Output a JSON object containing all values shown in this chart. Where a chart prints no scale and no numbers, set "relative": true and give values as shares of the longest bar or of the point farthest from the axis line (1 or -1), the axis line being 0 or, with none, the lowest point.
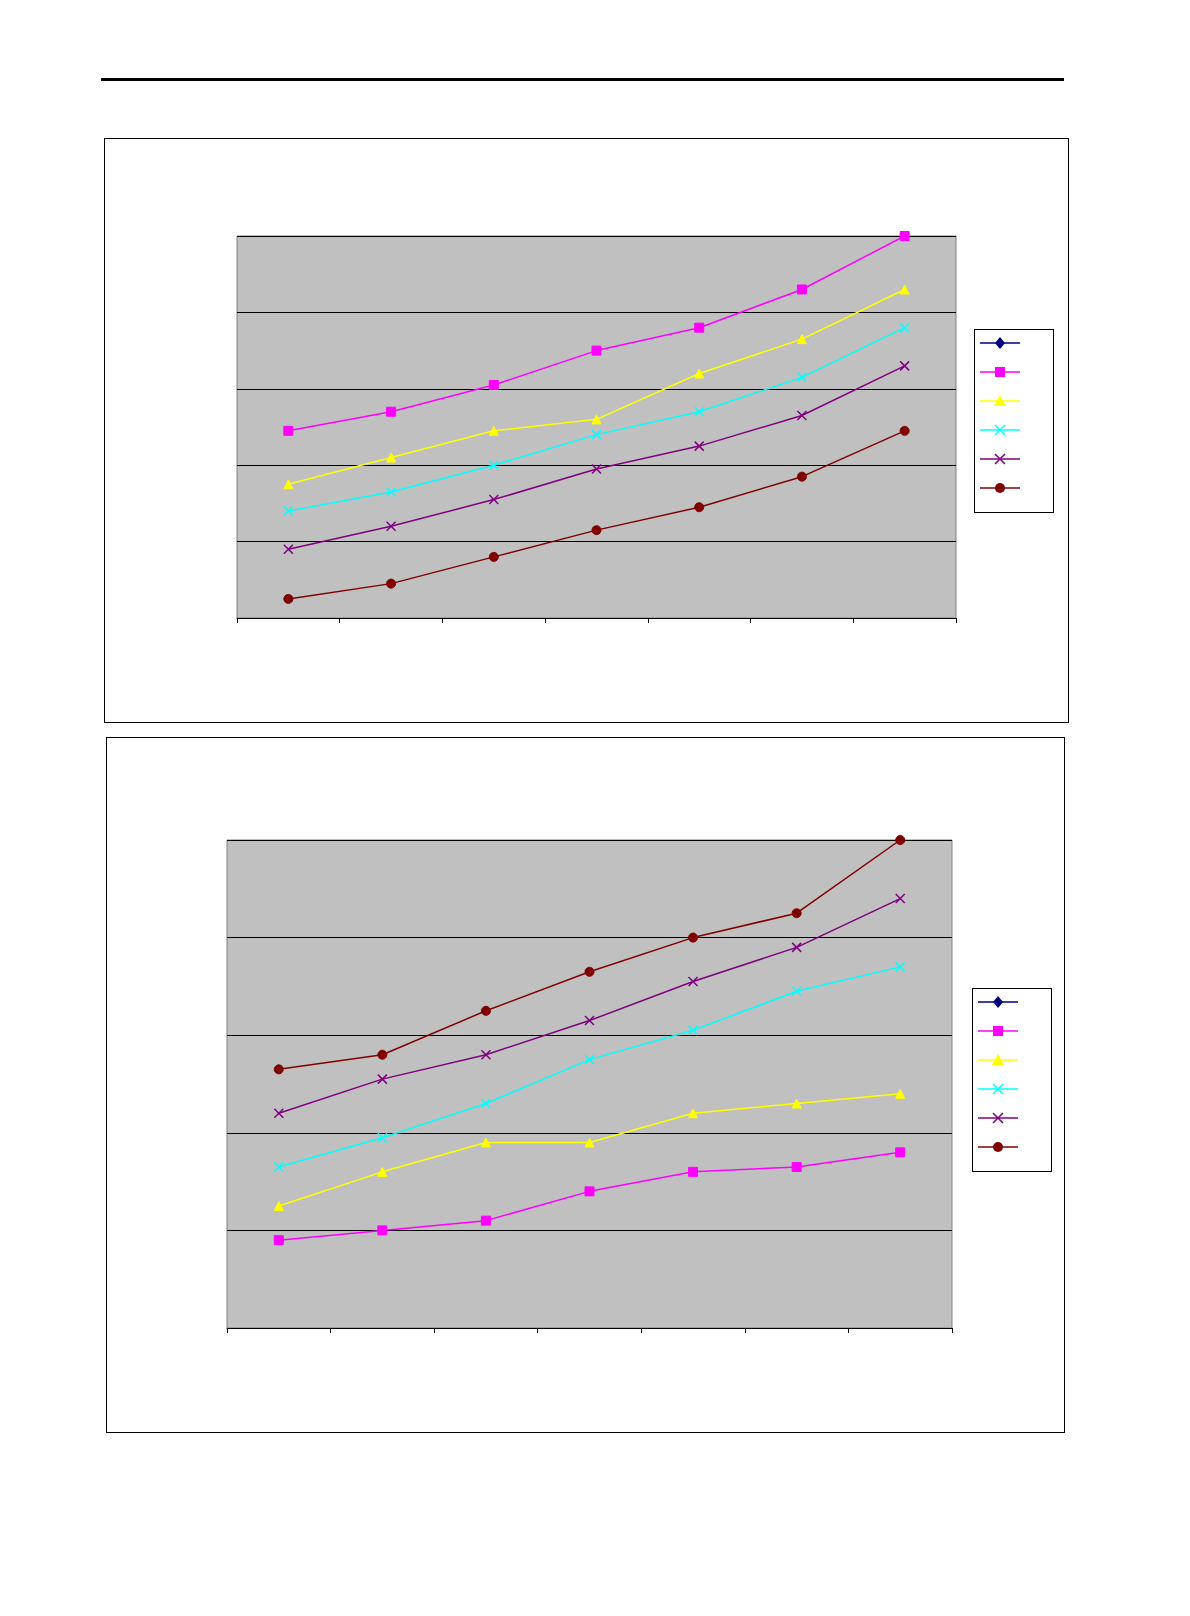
{
  "chart_data": [
    {
      "type": "line",
      "relative": true,
      "categories": [
        null,
        null,
        null,
        null,
        null,
        null,
        null
      ],
      "grid": "y",
      "series": [
        {
          "color": "#000080",
          "marker": "diamond",
          "values": [
            null,
            null,
            null,
            null,
            null,
            null,
            null
          ]
        },
        {
          "color": "#ff00ff",
          "marker": "square",
          "values": [
            0.49,
            0.54,
            0.61,
            0.7,
            0.76,
            0.86,
            1
          ]
        },
        {
          "color": "#ffff00",
          "marker": "triangle",
          "values": [
            0.35,
            0.42,
            0.49,
            0.52,
            0.64,
            0.73,
            0.86
          ]
        },
        {
          "color": "#00ffff",
          "marker": "cross",
          "values": [
            0.28,
            0.33,
            0.4,
            0.48,
            0.54,
            0.63,
            0.76
          ]
        },
        {
          "color": "#800080",
          "marker": "cross",
          "values": [
            0.18,
            0.24,
            0.31,
            0.39,
            0.45,
            0.53,
            0.66
          ]
        },
        {
          "color": "#800000",
          "marker": "circle",
          "values": [
            0.05,
            0.09,
            0.16,
            0.23,
            0.29,
            0.37,
            0.49
          ]
        }
      ]
    },
    {
      "type": "line",
      "relative": true,
      "categories": [
        null,
        null,
        null,
        null,
        null,
        null,
        null
      ],
      "grid": "y",
      "series": [
        {
          "color": "#000080",
          "marker": "diamond",
          "values": [
            null,
            null,
            null,
            null,
            null,
            null,
            null
          ]
        },
        {
          "color": "#ff00ff",
          "marker": "square",
          "values": [
            0.18,
            0.2,
            0.22,
            0.28,
            0.32,
            0.33,
            0.36
          ]
        },
        {
          "color": "#ffff00",
          "marker": "triangle",
          "values": [
            0.25,
            0.32,
            0.38,
            0.38,
            0.44,
            0.46,
            0.48
          ]
        },
        {
          "color": "#00ffff",
          "marker": "cross",
          "values": [
            0.33,
            0.39,
            0.46,
            0.55,
            0.61,
            0.69,
            0.74
          ]
        },
        {
          "color": "#800080",
          "marker": "cross",
          "values": [
            0.44,
            0.51,
            0.56,
            0.63,
            0.71,
            0.78,
            0.88
          ]
        },
        {
          "color": "#800000",
          "marker": "circle",
          "values": [
            0.53,
            0.56,
            0.65,
            0.73,
            0.8,
            0.85,
            1
          ]
        }
      ]
    }
  ]
}
